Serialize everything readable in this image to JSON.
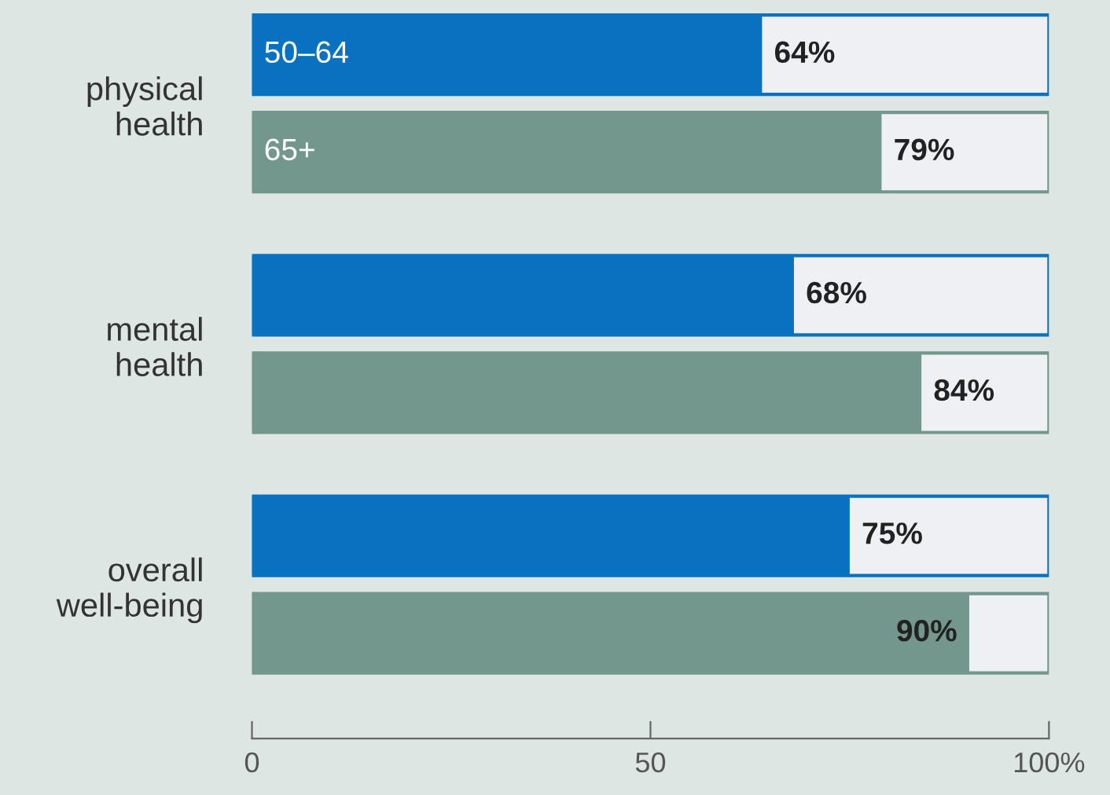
{
  "chart_data": {
    "type": "bar",
    "orientation": "horizontal",
    "categories": [
      "physical\nhealth",
      "mental\nhealth",
      "overall\nwell-being"
    ],
    "series": [
      {
        "name": "50–64",
        "color": "#0872c0",
        "values": [
          64,
          68,
          75
        ],
        "value_labels": [
          "64%",
          "68%",
          "75%"
        ]
      },
      {
        "name": "65+",
        "color": "#73978c",
        "values": [
          79,
          84,
          90
        ],
        "value_labels": [
          "79%",
          "84%",
          "90%"
        ]
      }
    ],
    "xlim": [
      0,
      100
    ],
    "xticks": [
      0,
      50,
      {
        "value": 100,
        "label": "100%"
      }
    ],
    "grid": false,
    "legend": "top left"
  }
}
